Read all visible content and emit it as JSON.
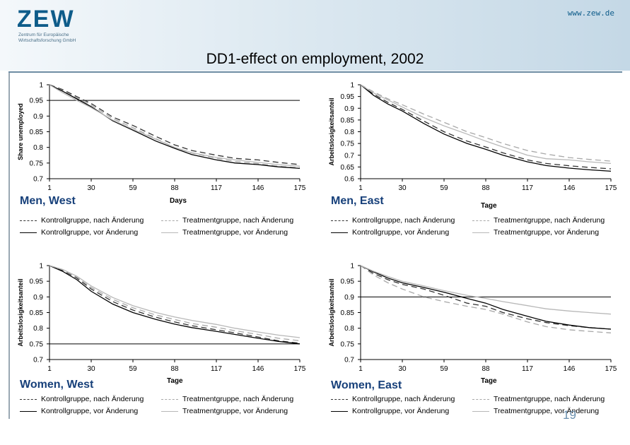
{
  "header": {
    "logo": "ZEW",
    "logo_subtitle": "Zentrum für Europäische Wirtschaftsforschung GmbH",
    "url": "www.zew.de"
  },
  "page_title": "DD1-effect on employment, 2002",
  "page_number": "19",
  "colors": {
    "logo": "#0e5c8a",
    "panel_label": "#17407a",
    "kontroll_nach": "#333333",
    "kontroll_vor": "#000000",
    "treatment_nach": "#a8a8a8",
    "treatment_vor": "#b8b8b8"
  },
  "chart_data": [
    {
      "type": "line",
      "panel_label": "Men, West",
      "ylabel": "Share unemployed",
      "xlabel": "Days",
      "x_ticks": [
        1,
        30,
        59,
        88,
        117,
        146,
        175
      ],
      "y_ticks": [
        "1",
        "0.95",
        "0.9",
        "0.85",
        "0.8",
        "0.75",
        "0.7"
      ],
      "xlim": [
        1,
        175
      ],
      "ylim": [
        0.7,
        1
      ],
      "reference_line": 0.95,
      "x": [
        1,
        10,
        20,
        30,
        45,
        59,
        75,
        88,
        100,
        117,
        130,
        146,
        160,
        175
      ],
      "series": [
        {
          "name": "Kontrollgruppe, nach Änderung",
          "style": "dash-dark",
          "values": [
            1,
            0.985,
            0.962,
            0.94,
            0.897,
            0.87,
            0.835,
            0.808,
            0.79,
            0.775,
            0.765,
            0.76,
            0.752,
            0.745
          ]
        },
        {
          "name": "Treatmentgruppe, nach Änderung",
          "style": "dash-light",
          "values": [
            1,
            0.982,
            0.958,
            0.935,
            0.892,
            0.863,
            0.828,
            0.8,
            0.782,
            0.765,
            0.755,
            0.748,
            0.74,
            0.735
          ]
        },
        {
          "name": "Kontrollgruppe, vor Änderung",
          "style": "solid-dark",
          "values": [
            1,
            0.98,
            0.955,
            0.93,
            0.885,
            0.855,
            0.82,
            0.797,
            0.777,
            0.76,
            0.75,
            0.745,
            0.738,
            0.733
          ]
        },
        {
          "name": "Treatmentgruppe, vor Änderung",
          "style": "solid-light",
          "values": [
            1,
            0.975,
            0.95,
            0.927,
            0.887,
            0.858,
            0.826,
            0.8,
            0.783,
            0.768,
            0.76,
            0.752,
            0.745,
            0.74
          ]
        }
      ]
    },
    {
      "type": "line",
      "panel_label": "Men, East",
      "ylabel": "Arbeitslosigkeitsanteil",
      "xlabel": "Tage",
      "x_ticks": [
        1,
        30,
        59,
        88,
        117,
        146,
        175
      ],
      "y_ticks": [
        "1",
        "0.95",
        "0.9",
        "0.85",
        "0.8",
        "0.75",
        "0.7",
        "0.65",
        "0.6"
      ],
      "xlim": [
        1,
        175
      ],
      "ylim": [
        0.6,
        1
      ],
      "reference_line": null,
      "x": [
        1,
        10,
        20,
        30,
        45,
        59,
        75,
        88,
        100,
        117,
        130,
        146,
        160,
        175
      ],
      "series": [
        {
          "name": "Kontrollgruppe, nach Änderung",
          "style": "dash-dark",
          "values": [
            1,
            0.96,
            0.925,
            0.895,
            0.845,
            0.8,
            0.76,
            0.735,
            0.71,
            0.68,
            0.665,
            0.655,
            0.648,
            0.642
          ]
        },
        {
          "name": "Treatmentgruppe, nach Änderung",
          "style": "dash-light",
          "values": [
            1,
            0.97,
            0.94,
            0.915,
            0.875,
            0.84,
            0.8,
            0.775,
            0.75,
            0.72,
            0.705,
            0.69,
            0.682,
            0.675
          ]
        },
        {
          "name": "Kontrollgruppe, vor Änderung",
          "style": "solid-dark",
          "values": [
            1,
            0.955,
            0.918,
            0.888,
            0.835,
            0.79,
            0.75,
            0.725,
            0.7,
            0.672,
            0.656,
            0.645,
            0.638,
            0.632
          ]
        },
        {
          "name": "Treatmentgruppe, vor Änderung",
          "style": "solid-light",
          "values": [
            1,
            0.965,
            0.935,
            0.905,
            0.86,
            0.825,
            0.79,
            0.76,
            0.735,
            0.7,
            0.685,
            0.68,
            0.672,
            0.665
          ]
        }
      ]
    },
    {
      "type": "line",
      "panel_label": "Women, West",
      "ylabel": "Arbeitslosigkeitsanteil",
      "xlabel": "Tage",
      "x_ticks": [
        1,
        30,
        59,
        88,
        117,
        146,
        175
      ],
      "y_ticks": [
        "1",
        "0.95",
        "0.9",
        "0.85",
        "0.8",
        "0.75",
        "0.7"
      ],
      "xlim": [
        1,
        175
      ],
      "ylim": [
        0.7,
        1
      ],
      "reference_line": 0.75,
      "x": [
        1,
        10,
        20,
        30,
        45,
        59,
        75,
        88,
        100,
        117,
        130,
        146,
        160,
        175
      ],
      "series": [
        {
          "name": "Kontrollgruppe, nach Änderung",
          "style": "dash-dark",
          "values": [
            1,
            0.985,
            0.96,
            0.925,
            0.885,
            0.858,
            0.835,
            0.82,
            0.808,
            0.795,
            0.785,
            0.772,
            0.76,
            0.752
          ]
        },
        {
          "name": "Treatmentgruppe, nach Änderung",
          "style": "dash-light",
          "values": [
            1,
            0.987,
            0.963,
            0.93,
            0.892,
            0.865,
            0.842,
            0.828,
            0.815,
            0.803,
            0.792,
            0.78,
            0.768,
            0.76
          ]
        },
        {
          "name": "Kontrollgruppe, vor Änderung",
          "style": "solid-dark",
          "values": [
            1,
            0.982,
            0.955,
            0.918,
            0.877,
            0.85,
            0.828,
            0.813,
            0.802,
            0.79,
            0.78,
            0.768,
            0.758,
            0.75
          ]
        },
        {
          "name": "Treatmentgruppe, vor Änderung",
          "style": "solid-light",
          "values": [
            1,
            0.988,
            0.966,
            0.935,
            0.898,
            0.872,
            0.85,
            0.836,
            0.825,
            0.812,
            0.8,
            0.788,
            0.778,
            0.77
          ]
        }
      ]
    },
    {
      "type": "line",
      "panel_label": "Women, East",
      "ylabel": "Arbeitslosigkeitsanteil",
      "xlabel": "Tage",
      "x_ticks": [
        1,
        30,
        59,
        88,
        117,
        146,
        175
      ],
      "y_ticks": [
        "1",
        "0.95",
        "0.9",
        "0.85",
        "0.8",
        "0.75",
        "0.7"
      ],
      "xlim": [
        1,
        175
      ],
      "ylim": [
        0.7,
        1
      ],
      "reference_line": 0.9,
      "x": [
        1,
        10,
        20,
        30,
        45,
        59,
        75,
        88,
        100,
        117,
        130,
        146,
        160,
        175
      ],
      "series": [
        {
          "name": "Kontrollgruppe, nach Änderung",
          "style": "dash-dark",
          "values": [
            1,
            0.975,
            0.955,
            0.94,
            0.925,
            0.905,
            0.88,
            0.87,
            0.85,
            0.83,
            0.818,
            0.808,
            0.802,
            0.797
          ]
        },
        {
          "name": "Treatmentgruppe, nach Änderung",
          "style": "dash-light",
          "values": [
            1,
            0.97,
            0.945,
            0.925,
            0.9,
            0.885,
            0.87,
            0.86,
            0.845,
            0.82,
            0.805,
            0.795,
            0.79,
            0.785
          ]
        },
        {
          "name": "Kontrollgruppe, vor Änderung",
          "style": "solid-dark",
          "values": [
            1,
            0.98,
            0.96,
            0.945,
            0.93,
            0.915,
            0.895,
            0.88,
            0.86,
            0.838,
            0.822,
            0.81,
            0.802,
            0.797
          ]
        },
        {
          "name": "Treatmentgruppe, vor Änderung",
          "style": "solid-light",
          "values": [
            1,
            0.982,
            0.965,
            0.95,
            0.935,
            0.92,
            0.905,
            0.895,
            0.885,
            0.872,
            0.862,
            0.855,
            0.85,
            0.845
          ]
        }
      ]
    }
  ]
}
